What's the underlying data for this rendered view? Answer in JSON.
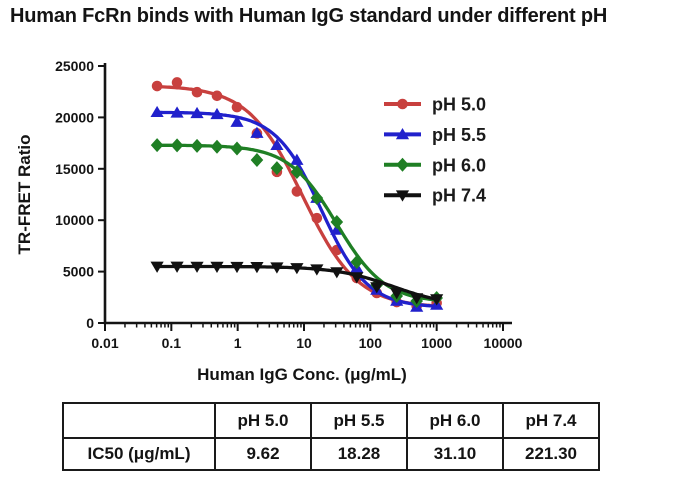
{
  "chart_data": {
    "type": "line",
    "title": "Human FcRn binds with Human IgG standard under different pH",
    "xlabel": "Human IgG Conc. (μg/mL)",
    "ylabel": "TR-FRET Ratio",
    "x_scale": "log",
    "xlim": [
      0.01,
      10000
    ],
    "ylim": [
      0,
      25000
    ],
    "y_ticks": [
      0,
      5000,
      10000,
      15000,
      20000,
      25000
    ],
    "y_tick_labels": [
      "0",
      "5000",
      "10000",
      "15000",
      "20000",
      "25000"
    ],
    "x_ticks": [
      0.01,
      0.1,
      1,
      10,
      100,
      1000,
      10000
    ],
    "x_tick_labels": [
      "0.01",
      "0.1",
      "1",
      "10",
      "100",
      "1000",
      "10000"
    ],
    "grid": false,
    "legend_position": "inside-upper-right",
    "x": [
      0.061,
      0.122,
      0.244,
      0.488,
      0.977,
      1.953,
      3.906,
      7.813,
      15.625,
      31.25,
      62.5,
      125,
      250,
      500,
      1000
    ],
    "series": [
      {
        "name": "pH 5.0",
        "color": "#C8403E",
        "marker": "circle",
        "values": [
          23050,
          23400,
          22450,
          22100,
          21000,
          18450,
          14700,
          12800,
          10200,
          7100,
          4380,
          2920,
          2040,
          1650,
          1940
        ],
        "fit": {
          "top": 23100,
          "bottom": 1500,
          "ic50": 9.62,
          "hill": 1.05
        }
      },
      {
        "name": "pH 5.5",
        "color": "#2121CC",
        "marker": "triangle-up",
        "values": [
          20500,
          20450,
          20400,
          20300,
          19550,
          18480,
          17300,
          15850,
          12150,
          9050,
          5350,
          3210,
          2140,
          1560,
          1750
        ],
        "fit": {
          "top": 20500,
          "bottom": 1500,
          "ic50": 18.28,
          "hill": 1.25
        }
      },
      {
        "name": "pH 6.0",
        "color": "#1F7F24",
        "marker": "diamond",
        "values": [
          17300,
          17280,
          17230,
          17140,
          16970,
          15850,
          15070,
          14690,
          12160,
          9820,
          5930,
          3700,
          2630,
          2140,
          2430
        ],
        "fit": {
          "top": 17300,
          "bottom": 2000,
          "ic50": 31.1,
          "hill": 1.2
        }
      },
      {
        "name": "pH 7.4",
        "color": "#111111",
        "marker": "triangle-down",
        "values": [
          5500,
          5500,
          5495,
          5490,
          5480,
          5465,
          5430,
          5360,
          5230,
          4960,
          4470,
          3500,
          2920,
          2430,
          2330
        ],
        "fit": {
          "top": 5500,
          "bottom": 1600,
          "ic50": 221.3,
          "hill": 1.0
        }
      }
    ]
  },
  "table": {
    "columns": [
      "",
      "pH 5.0",
      "pH 5.5",
      "pH 6.0",
      "pH 7.4"
    ],
    "rows": [
      {
        "label": "IC50 (μg/mL)",
        "values": [
          "9.62",
          "18.28",
          "31.10",
          "221.30"
        ]
      }
    ]
  }
}
